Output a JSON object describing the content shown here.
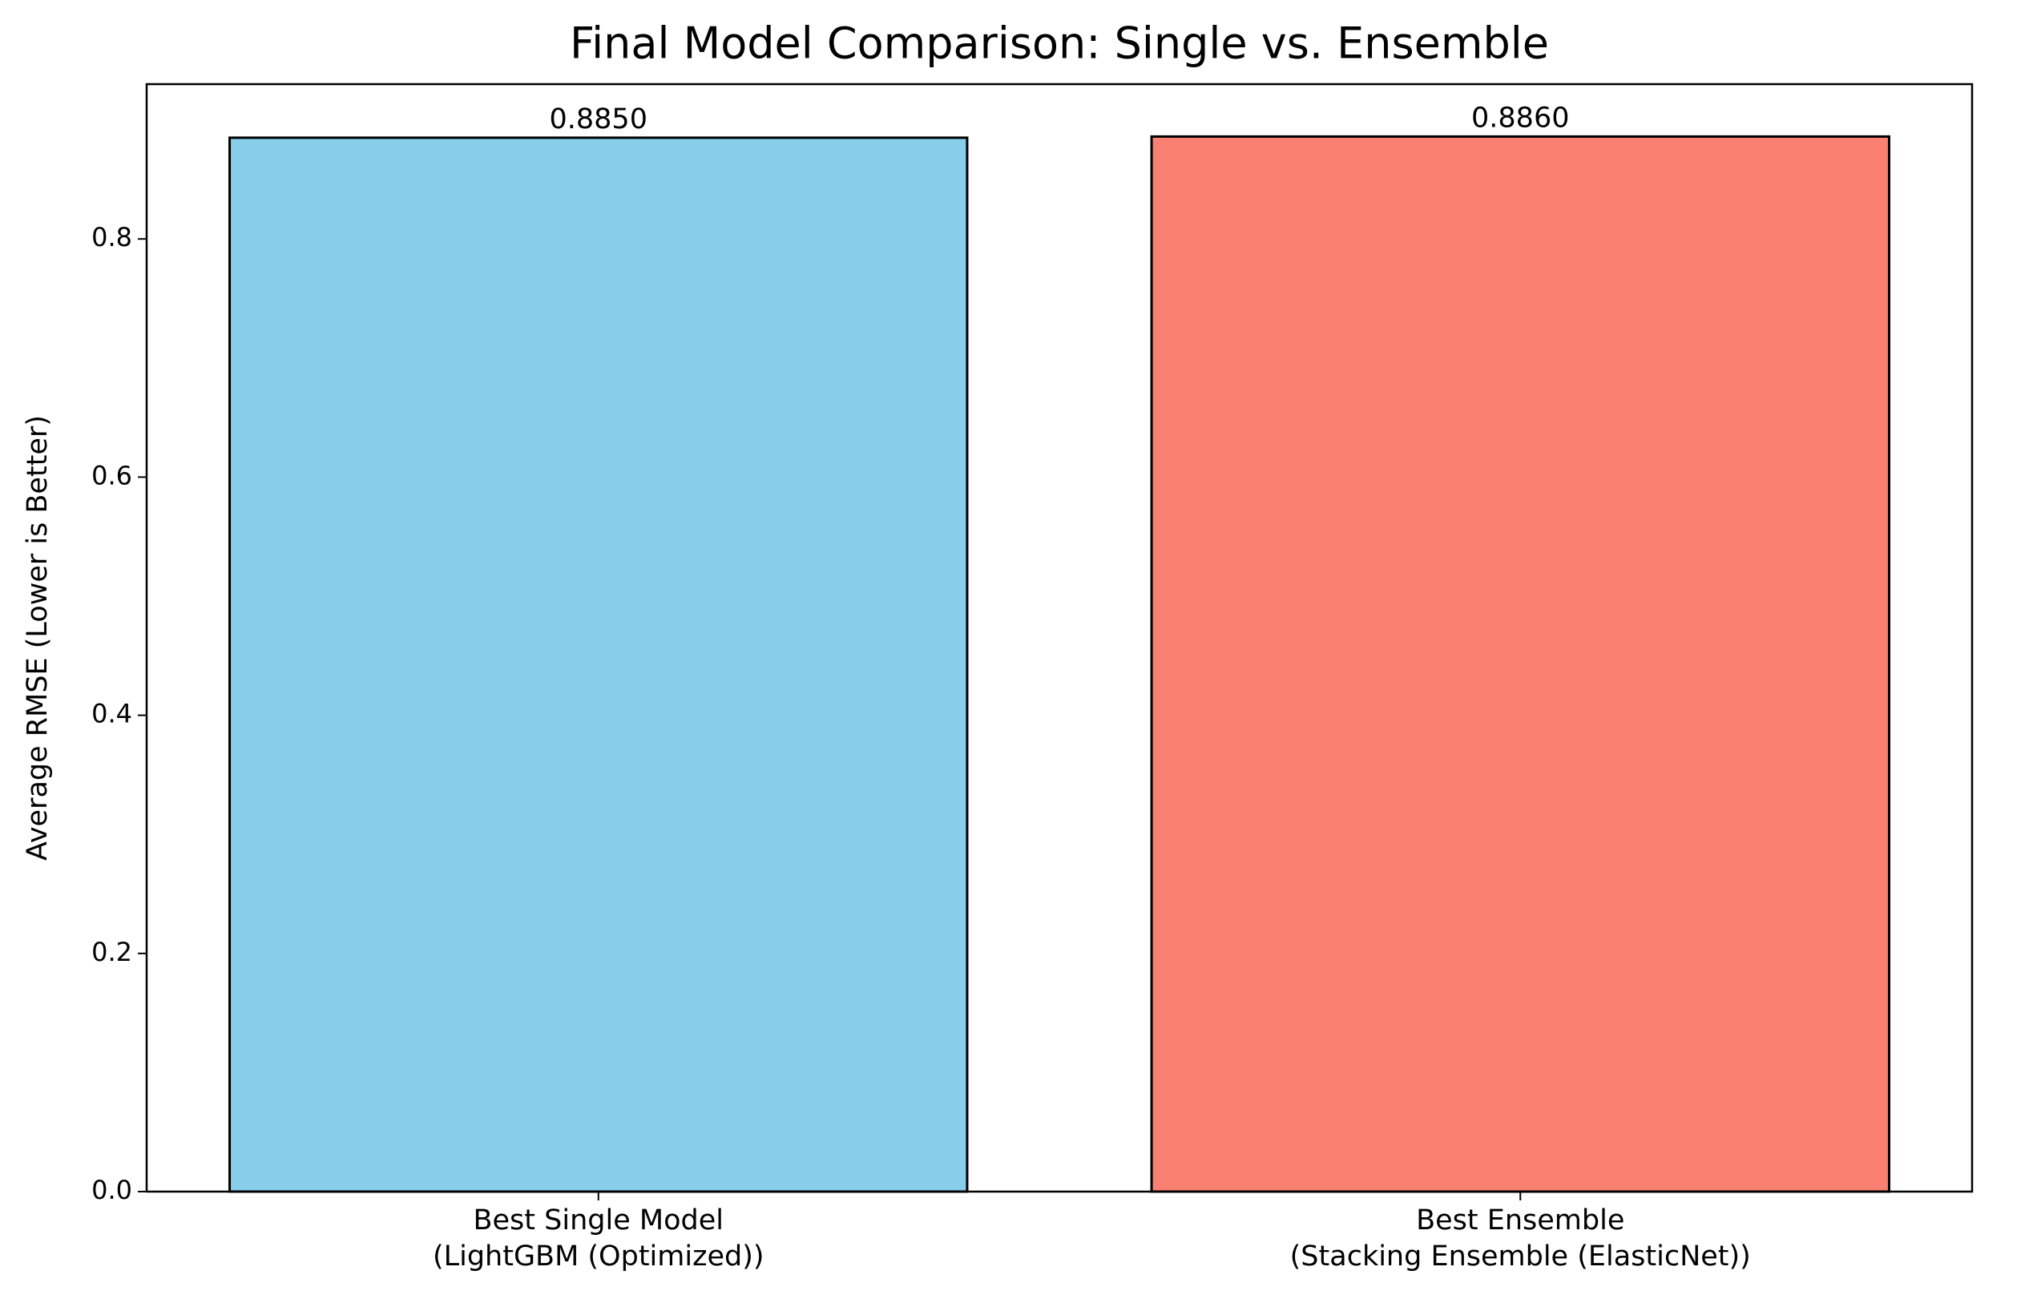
{
  "chart_data": {
    "type": "bar",
    "title": "Final Model Comparison: Single vs. Ensemble",
    "y_label": "Average RMSE (Lower is Better)",
    "categories": [
      "Best Single Model\n(LightGBM (Optimized))",
      "Best Ensemble\n(Stacking Ensemble (ElasticNet))"
    ],
    "values": [
      0.885,
      0.886
    ],
    "value_labels": [
      "0.8850",
      "0.8860"
    ],
    "colors": [
      "#87ceeb",
      "#fa8072"
    ],
    "edge_color": "#000000",
    "ylim": [
      0,
      0.93
    ],
    "yticks": [
      {
        "value": 0,
        "label": "0.0"
      },
      0.2,
      0.4,
      0.6,
      0.8
    ],
    "grid": false
  }
}
